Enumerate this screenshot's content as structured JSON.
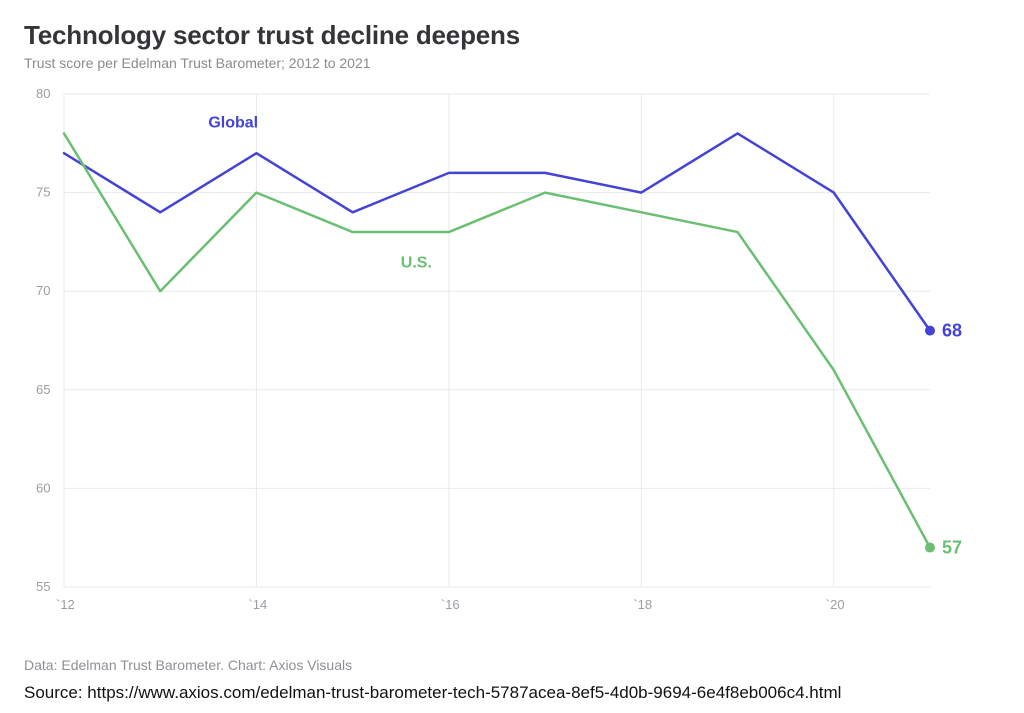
{
  "header": {
    "title": "Technology sector trust decline deepens",
    "subtitle": "Trust score per Edelman Trust Barometer; 2012 to 2021"
  },
  "chart": {
    "type": "line",
    "background_color": "#ffffff",
    "grid_color": "#e8e9eb",
    "axis_text_color": "#9a9da2",
    "xlim": [
      2012,
      2021
    ],
    "ylim": [
      55,
      80
    ],
    "ytick_step": 5,
    "yticks": [
      55,
      60,
      65,
      70,
      75,
      80
    ],
    "xticks": [
      2012,
      2014,
      2016,
      2018,
      2020
    ],
    "xtick_labels": [
      "`12",
      "`14",
      "`16",
      "`18",
      "`20"
    ],
    "line_width": 2.5,
    "end_marker_radius": 5,
    "series": [
      {
        "name": "Global",
        "label": "Global",
        "color": "#4343d6",
        "label_x": 2013.5,
        "label_y": 78.3,
        "x": [
          2012,
          2013,
          2014,
          2015,
          2016,
          2017,
          2018,
          2019,
          2020,
          2021
        ],
        "y": [
          77,
          74,
          77,
          74,
          76,
          76,
          75,
          78,
          75,
          68
        ],
        "end_value": 68
      },
      {
        "name": "U.S.",
        "label": "U.S.",
        "color": "#6bbf73",
        "label_x": 2015.5,
        "label_y": 71.2,
        "x": [
          2012,
          2013,
          2014,
          2015,
          2016,
          2017,
          2018,
          2019,
          2020,
          2021
        ],
        "y": [
          78,
          70,
          75,
          73,
          73,
          75,
          74,
          73,
          66,
          57
        ],
        "end_value": 57
      }
    ]
  },
  "footer": {
    "data_credit": "Data: Edelman Trust Barometer. Chart: Axios Visuals",
    "source": "Source: https://www.axios.com/edelman-trust-barometer-tech-5787acea-8ef5-4d0b-9694-6e4f8eb006c4.html"
  }
}
